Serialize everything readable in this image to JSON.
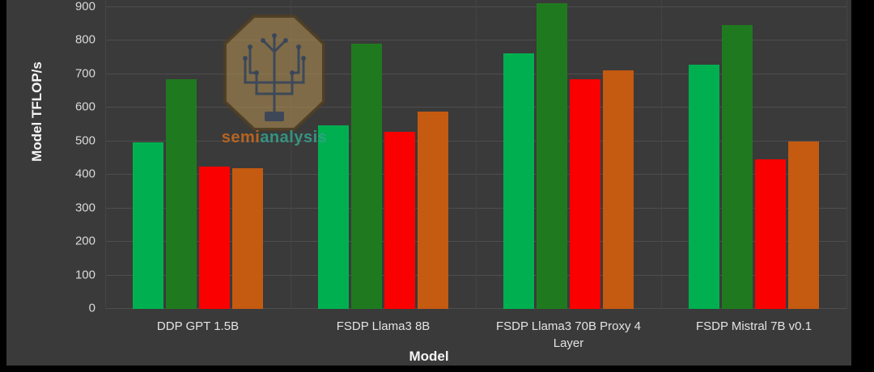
{
  "colors": {
    "page_border": "#000000",
    "surface": "#3a3a3a",
    "gridline": "#4e4e4e",
    "tick_text": "#d9d9d9",
    "axis_title_text": "#f5f5f5"
  },
  "watermark": {
    "semi": "semi",
    "analysis": "analysis"
  },
  "chart_data": {
    "type": "bar",
    "title": "",
    "xlabel": "Model",
    "ylabel": "Model TFLOP/s",
    "ylim": [
      0,
      920
    ],
    "yticks": [
      0,
      100,
      200,
      300,
      400,
      500,
      600,
      700,
      800,
      900
    ],
    "grid": "horizontal",
    "legend": "none",
    "categories": [
      "DDP GPT 1.5B",
      "FSDP Llama3 8B",
      "FSDP Llama3 70B Proxy 4 Layer",
      "FSDP Mistral 7B v0.1"
    ],
    "series": [
      {
        "name": "bright-green",
        "color": "#00b050",
        "values": [
          497,
          547,
          762,
          729
        ]
      },
      {
        "name": "dark-green",
        "color": "#1f7a1f",
        "values": [
          686,
          792,
          912,
          846
        ]
      },
      {
        "name": "red",
        "color": "#fb0000",
        "values": [
          424,
          528,
          685,
          447
        ]
      },
      {
        "name": "dark-orange",
        "color": "#c55a11",
        "values": [
          420,
          588,
          713,
          500
        ]
      }
    ]
  }
}
